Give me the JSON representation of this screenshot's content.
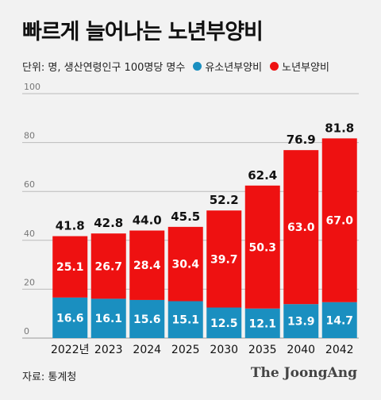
{
  "title": "빠르게 늘어나는 노년부양비",
  "unit_note": "단위: 명, 생산연령인구 100명당 명수",
  "source": "자료: 통계청",
  "brand": "The JoongAng",
  "colors": {
    "youth": "#1a8fc0",
    "elderly": "#ee1111"
  },
  "chart_data": {
    "type": "bar",
    "stacked": true,
    "categories": [
      "2022년",
      "2023",
      "2024",
      "2025",
      "2030",
      "2035",
      "2040",
      "2042"
    ],
    "series": [
      {
        "name": "유소년부양비",
        "values": [
          16.6,
          16.1,
          15.6,
          15.1,
          12.5,
          12.1,
          13.9,
          14.7
        ]
      },
      {
        "name": "노년부양비",
        "values": [
          25.1,
          26.7,
          28.4,
          30.4,
          39.7,
          50.3,
          63.0,
          67.0
        ]
      }
    ],
    "totals": [
      "41.8",
      "42.8",
      "44.0",
      "45.5",
      "52.2",
      "62.4",
      "76.9",
      "81.8"
    ],
    "yticks": [
      "0",
      "20",
      "40",
      "60",
      "80",
      "100"
    ],
    "ylim": [
      0,
      100
    ],
    "grid": true,
    "legend_position": "top"
  }
}
